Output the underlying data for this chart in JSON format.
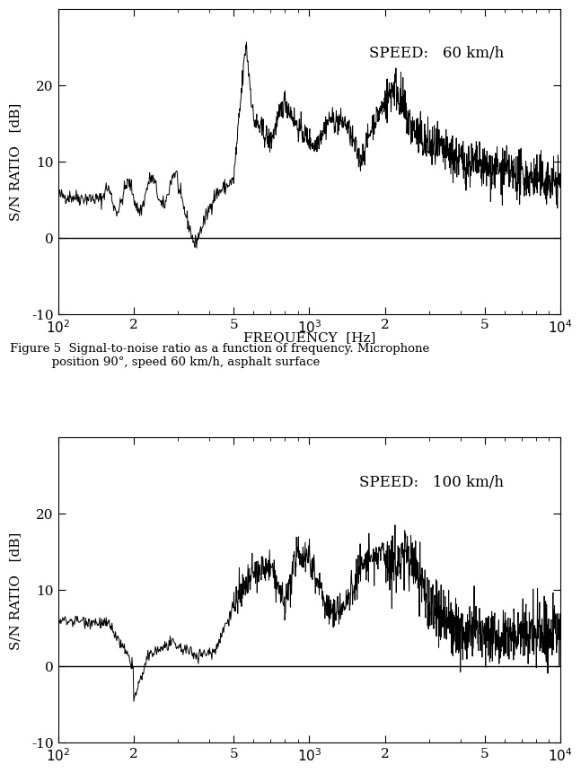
{
  "fig_width": 6.74,
  "fig_height": 9.19,
  "background_color": "#ffffff",
  "top_chart": {
    "speed_label": "SPEED:   60 km/h",
    "ylabel": "S/N RATIO   [dB]",
    "xlabel": "FREQUENCY  [Hz]",
    "xlim": [
      100,
      10000
    ],
    "ylim": [
      -10,
      30
    ],
    "yticks": [
      -10,
      0,
      10,
      20
    ],
    "caption": "Figure 5  Signal-to-noise ratio as a function of frequency. Microphone\n           position 90°, speed 60 km/h, asphalt surface"
  },
  "bottom_chart": {
    "speed_label": "SPEED:   100 km/h",
    "ylabel": "S/N RATIO   [dB]",
    "xlabel": "",
    "xlim": [
      100,
      10000
    ],
    "ylim": [
      -10,
      30
    ],
    "yticks": [
      -10,
      0,
      10,
      20
    ]
  }
}
